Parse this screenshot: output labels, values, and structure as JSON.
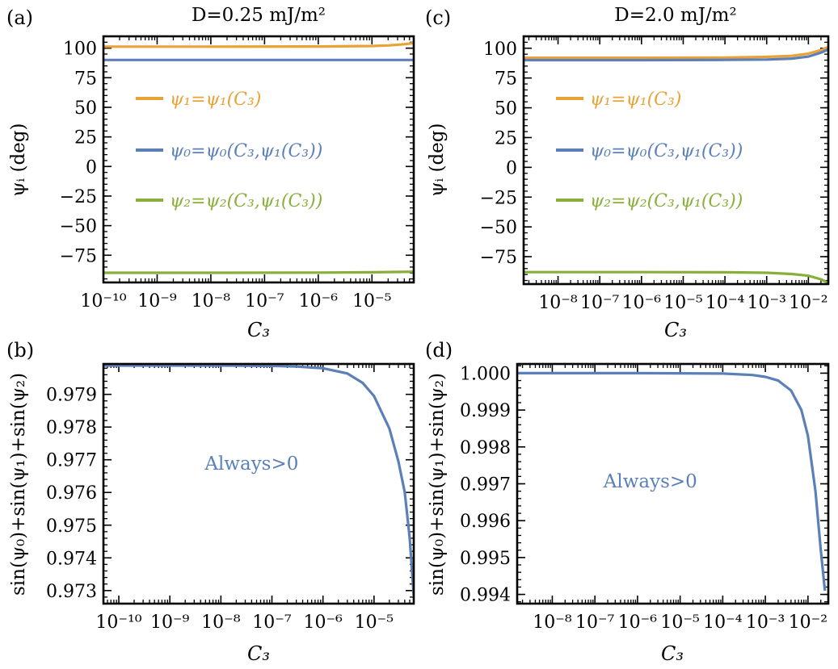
{
  "colors": {
    "orange": "#E8A236",
    "blue": "#5B80B9",
    "green": "#88AF3A",
    "axis": "#000000"
  },
  "chart_data": [
    {
      "id": "a",
      "panel_label": "(a)",
      "type": "line",
      "title": "D=0.25 mJ/m²",
      "xlabel": "C₃",
      "ylabel": "ψᵢ (deg)",
      "xscale": "log",
      "xlim": [
        1e-10,
        6e-05
      ],
      "ylim": [
        -98,
        110
      ],
      "xticks": [
        1e-10,
        1e-09,
        1e-08,
        1e-07,
        1e-06,
        1e-05
      ],
      "xtick_labels": [
        "10⁻¹⁰",
        "10⁻⁹",
        "10⁻⁸",
        "10⁻⁷",
        "10⁻⁶",
        "10⁻⁵"
      ],
      "yticks": [
        100,
        75,
        50,
        25,
        0,
        -25,
        -50,
        -75
      ],
      "ytick_labels": [
        "100",
        "75",
        "50",
        "25",
        "0",
        "−25",
        "−50",
        "−75"
      ],
      "legend_position": "center-left",
      "series": [
        {
          "name": "ψ₁=ψ₁(C₃)",
          "color": "orange",
          "x": [
            1e-10,
            1e-08,
            1e-06,
            1e-05,
            2e-05,
            4e-05,
            6e-05
          ],
          "y": [
            101.3,
            101.3,
            101.4,
            101.8,
            102.3,
            103.3,
            104.3
          ]
        },
        {
          "name": "ψ₀=ψ₀(C₃,ψ₁(C₃))",
          "color": "blue",
          "x": [
            1e-10,
            1e-08,
            1e-06,
            1e-05,
            6e-05
          ],
          "y": [
            90,
            90,
            90,
            90,
            90
          ]
        },
        {
          "name": "ψ₂=ψ₂(C₃,ψ₁(C₃))",
          "color": "green",
          "x": [
            1e-10,
            1e-08,
            1e-06,
            1e-05,
            6e-05
          ],
          "y": [
            -89.8,
            -89.8,
            -89.7,
            -89.4,
            -88.9
          ]
        }
      ]
    },
    {
      "id": "c",
      "panel_label": "(c)",
      "type": "line",
      "title": "D=2.0 mJ/m²",
      "xlabel": "C₃",
      "ylabel": "ψᵢ (deg)",
      "xscale": "log",
      "xlim": [
        1.5e-09,
        0.03
      ],
      "ylim": [
        -98,
        110
      ],
      "xticks": [
        1e-08,
        1e-07,
        1e-06,
        1e-05,
        0.0001,
        0.001,
        0.01
      ],
      "xtick_labels": [
        "10⁻⁸",
        "10⁻⁷",
        "10⁻⁶",
        "10⁻⁵",
        "10⁻⁴",
        "10⁻³",
        "10⁻²"
      ],
      "yticks": [
        100,
        75,
        50,
        25,
        0,
        -25,
        -50,
        -75
      ],
      "ytick_labels": [
        "100",
        "75",
        "50",
        "25",
        "0",
        "−25",
        "−50",
        "−75"
      ],
      "legend_position": "center-left",
      "series": [
        {
          "name": "ψ₁=ψ₁(C₃)",
          "color": "orange",
          "x": [
            1.5e-09,
            1e-06,
            0.0001,
            0.001,
            0.004,
            0.01,
            0.02,
            0.03
          ],
          "y": [
            92,
            92,
            92.2,
            92.7,
            93.6,
            95.5,
            98.5,
            101
          ]
        },
        {
          "name": "ψ₀=ψ₀(C₃,ψ₁(C₃))",
          "color": "blue",
          "x": [
            1.5e-09,
            1e-06,
            0.0001,
            0.001,
            0.004,
            0.01,
            0.02,
            0.03
          ],
          "y": [
            90,
            90,
            90.2,
            90.5,
            91.3,
            93,
            96.3,
            99
          ]
        },
        {
          "name": "ψ₂=ψ₂(C₃,ψ₁(C₃))",
          "color": "green",
          "x": [
            1.5e-09,
            1e-06,
            0.0001,
            0.001,
            0.004,
            0.01,
            0.02,
            0.03
          ],
          "y": [
            -88,
            -88,
            -88.1,
            -88.5,
            -89.5,
            -91,
            -94,
            -97
          ]
        }
      ]
    },
    {
      "id": "b",
      "panel_label": "(b)",
      "type": "line",
      "title": "",
      "xlabel": "C₃",
      "ylabel": "sin(ψ₀)+sin(ψ₁)+sin(ψ₂)",
      "xscale": "log",
      "xlim": [
        5e-11,
        6e-05
      ],
      "ylim": [
        0.9726,
        0.97993
      ],
      "xticks": [
        1e-10,
        1e-09,
        1e-08,
        1e-07,
        1e-06,
        1e-05
      ],
      "xtick_labels": [
        "10⁻¹⁰",
        "10⁻⁹",
        "10⁻⁸",
        "10⁻⁷",
        "10⁻⁶",
        "10⁻⁵"
      ],
      "yticks": [
        0.973,
        0.974,
        0.975,
        0.976,
        0.977,
        0.978,
        0.979
      ],
      "ytick_labels": [
        "0.973",
        "0.974",
        "0.975",
        "0.976",
        "0.977",
        "0.978",
        "0.979"
      ],
      "annotation": {
        "text": "Always>0",
        "x": 4e-08,
        "y": 0.9767,
        "color": "blue"
      },
      "series": [
        {
          "name": "",
          "color": "blue",
          "x": [
            5e-11,
            1e-08,
            1e-07,
            3e-07,
            1e-06,
            3e-06,
            6e-06,
            1e-05,
            2e-05,
            3e-05,
            4e-05,
            5e-05,
            6e-05
          ],
          "y": [
            0.97988,
            0.97988,
            0.97987,
            0.97985,
            0.9798,
            0.97964,
            0.97935,
            0.97895,
            0.97795,
            0.97695,
            0.976,
            0.9746,
            0.97285
          ]
        }
      ]
    },
    {
      "id": "d",
      "panel_label": "(d)",
      "type": "line",
      "title": "",
      "xlabel": "C₃",
      "ylabel": "sin(ψ₀)+sin(ψ₁)+sin(ψ₂)",
      "xscale": "log",
      "xlim": [
        1.5e-09,
        0.03
      ],
      "ylim": [
        0.99375,
        1.00025
      ],
      "xticks": [
        1e-08,
        1e-07,
        1e-06,
        1e-05,
        0.0001,
        0.001,
        0.01
      ],
      "xtick_labels": [
        "10⁻⁸",
        "10⁻⁷",
        "10⁻⁶",
        "10⁻⁵",
        "10⁻⁴",
        "10⁻³",
        "10⁻²"
      ],
      "yticks": [
        1.0,
        0.999,
        0.998,
        0.997,
        0.996,
        0.995,
        0.994
      ],
      "ytick_labels": [
        "1.000",
        "0.999",
        "0.998",
        "0.997",
        "0.996",
        "0.995",
        "0.994"
      ],
      "annotation": {
        "text": "Always>0",
        "x": 2e-06,
        "y": 0.9969,
        "color": "blue"
      },
      "series": [
        {
          "name": "",
          "color": "blue",
          "x": [
            1.5e-09,
            1e-06,
            0.0001,
            0.0005,
            0.001,
            0.002,
            0.004,
            0.007,
            0.01,
            0.015,
            0.02,
            0.025
          ],
          "y": [
            1.0,
            1.0,
            0.99999,
            0.99995,
            0.9999,
            0.9998,
            0.99953,
            0.999,
            0.9983,
            0.9968,
            0.9952,
            0.9941
          ]
        }
      ]
    }
  ]
}
